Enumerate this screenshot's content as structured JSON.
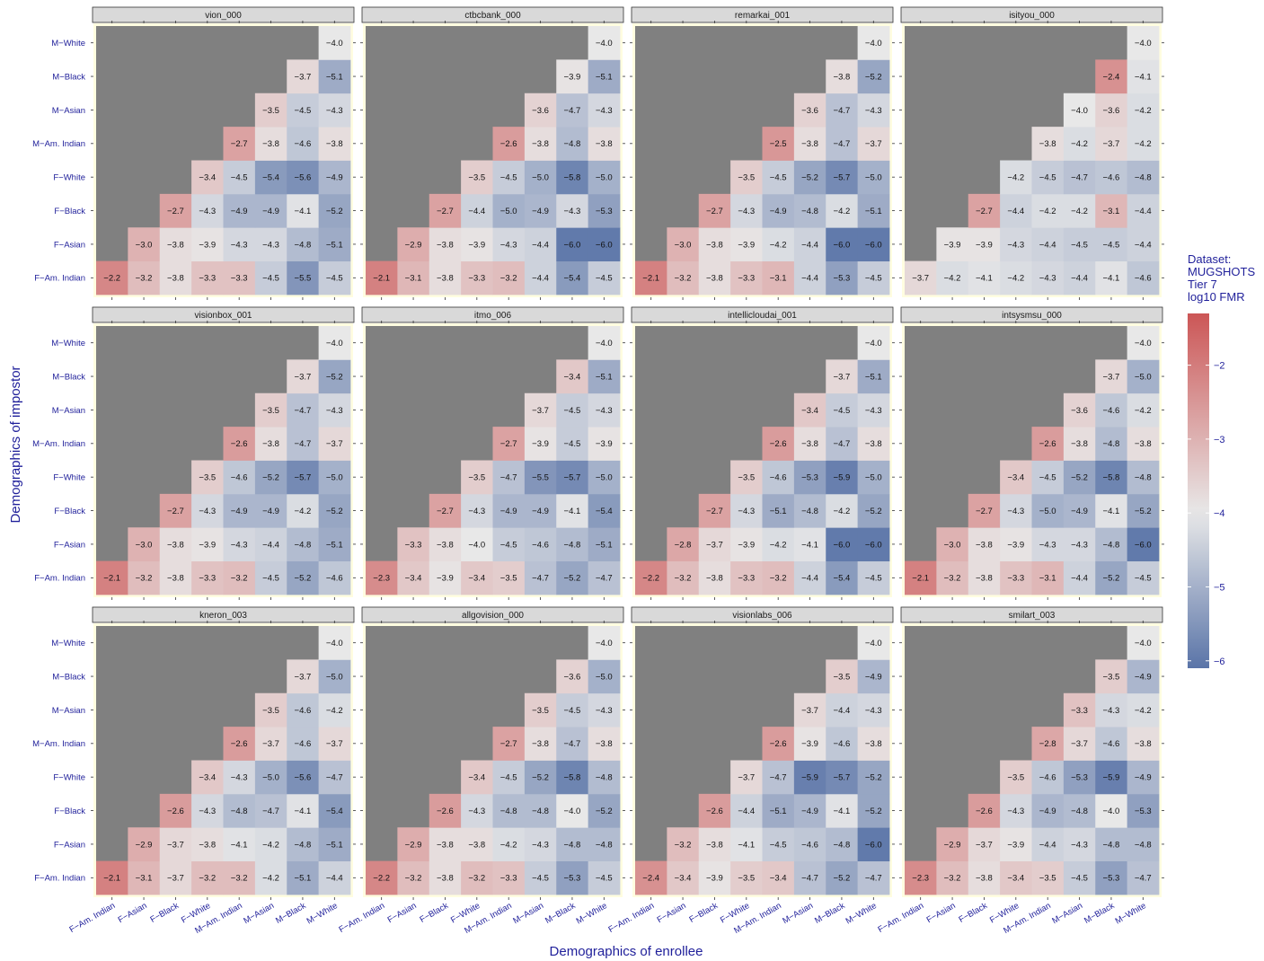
{
  "chart_data": {
    "type": "heatmap",
    "xlabel": "Demographics of enrollee",
    "ylabel": "Demographics of impostor",
    "x_categories": [
      "F−Am. Indian",
      "F−Asian",
      "F−Black",
      "F−White",
      "M−Am. Indian",
      "M−Asian",
      "M−Black",
      "M−White"
    ],
    "y_categories": [
      "F−Am. Indian",
      "F−Asian",
      "F−Black",
      "F−White",
      "M−Am. Indian",
      "M−Asian",
      "M−Black",
      "M−White"
    ],
    "legend": {
      "title_lines": [
        "Dataset:",
        "MUGSHOTS",
        "Tier 7",
        "log10 FMR"
      ],
      "ticks": [
        -2,
        -3,
        -4,
        -5,
        -6
      ],
      "range": [
        -6.1,
        -1.3
      ],
      "colors": {
        "high": "#cc5656",
        "mid": "#e8e8e8",
        "low": "#5a74a8",
        "masked": "#808080"
      }
    },
    "panels": [
      {
        "name": "vion_000",
        "rows": [
          [
            -2.2,
            -3.2,
            -3.8,
            -3.3,
            -3.3,
            -4.5,
            -5.5,
            -4.5
          ],
          [
            -3.0,
            -3.8,
            -3.9,
            -4.3,
            -4.3,
            -4.8,
            -5.1
          ],
          [
            -2.7,
            -4.3,
            -4.9,
            -4.9,
            -4.1,
            -5.2
          ],
          [
            -3.4,
            -4.5,
            -5.4,
            -5.6,
            -4.9
          ],
          [
            -2.7,
            -3.8,
            -4.6,
            -3.8
          ],
          [
            -3.5,
            -4.5,
            -4.3
          ],
          [
            -3.7,
            -5.1
          ],
          [
            -4.0
          ]
        ]
      },
      {
        "name": "ctbcbank_000",
        "rows": [
          [
            -2.1,
            -3.1,
            -3.8,
            -3.3,
            -3.2,
            -4.4,
            -5.4,
            -4.5
          ],
          [
            -2.9,
            -3.8,
            -3.9,
            -4.3,
            -4.4,
            -6.0,
            -6.0
          ],
          [
            -2.7,
            -4.4,
            -5.0,
            -4.9,
            -4.3,
            -5.3
          ],
          [
            -3.5,
            -4.5,
            -5.0,
            -5.8,
            -5.0
          ],
          [
            -2.6,
            -3.8,
            -4.8,
            -3.8
          ],
          [
            -3.6,
            -4.7,
            -4.3
          ],
          [
            -3.9,
            -5.1
          ],
          [
            -4.0
          ]
        ]
      },
      {
        "name": "remarkai_001",
        "rows": [
          [
            -2.1,
            -3.2,
            -3.8,
            -3.3,
            -3.1,
            -4.4,
            -5.3,
            -4.5
          ],
          [
            -3.0,
            -3.8,
            -3.9,
            -4.2,
            -4.4,
            -6.0,
            -6.0
          ],
          [
            -2.7,
            -4.3,
            -4.9,
            -4.8,
            -4.2,
            -5.1
          ],
          [
            -3.5,
            -4.5,
            -5.2,
            -5.7,
            -5.0
          ],
          [
            -2.5,
            -3.8,
            -4.7,
            -3.7
          ],
          [
            -3.6,
            -4.7,
            -4.3
          ],
          [
            -3.8,
            -5.2
          ],
          [
            -4.0
          ]
        ]
      },
      {
        "name": "isityou_000",
        "rows": [
          [
            -3.7,
            -4.2,
            -4.1,
            -4.2,
            -4.3,
            -4.4,
            -4.1,
            -4.6
          ],
          [
            -3.9,
            -3.9,
            -4.3,
            -4.4,
            -4.5,
            -4.5,
            -4.4
          ],
          [
            -2.7,
            -4.4,
            -4.2,
            -4.2,
            -3.1,
            -4.4
          ],
          [
            -4.2,
            -4.5,
            -4.7,
            -4.6,
            -4.8
          ],
          [
            -3.8,
            -4.2,
            -3.7,
            -4.2
          ],
          [
            -4.0,
            -3.6,
            -4.2
          ],
          [
            -2.4,
            -4.1
          ],
          [
            -4.0
          ]
        ]
      },
      {
        "name": "visionbox_001",
        "rows": [
          [
            -2.1,
            -3.2,
            -3.8,
            -3.3,
            -3.2,
            -4.5,
            -5.2,
            -4.6
          ],
          [
            -3.0,
            -3.8,
            -3.9,
            -4.3,
            -4.4,
            -4.8,
            -5.1
          ],
          [
            -2.7,
            -4.3,
            -4.9,
            -4.9,
            -4.2,
            -5.2
          ],
          [
            -3.5,
            -4.6,
            -5.2,
            -5.7,
            -5.0
          ],
          [
            -2.6,
            -3.8,
            -4.7,
            -3.7
          ],
          [
            -3.5,
            -4.7,
            -4.3
          ],
          [
            -3.7,
            -5.2
          ],
          [
            -4.0
          ]
        ]
      },
      {
        "name": "itmo_006",
        "rows": [
          [
            -2.3,
            -3.4,
            -3.9,
            -3.4,
            -3.5,
            -4.7,
            -5.2,
            -4.7
          ],
          [
            -3.3,
            -3.8,
            -4.0,
            -4.5,
            -4.6,
            -4.8,
            -5.1
          ],
          [
            -2.7,
            -4.3,
            -4.9,
            -4.9,
            -4.1,
            -5.4
          ],
          [
            -3.5,
            -4.7,
            -5.5,
            -5.7,
            -5.0
          ],
          [
            -2.7,
            -3.9,
            -4.5,
            -3.9
          ],
          [
            -3.7,
            -4.5,
            -4.3
          ],
          [
            -3.4,
            -5.1
          ],
          [
            -4.0
          ]
        ]
      },
      {
        "name": "intellicloudai_001",
        "rows": [
          [
            -2.2,
            -3.2,
            -3.8,
            -3.3,
            -3.2,
            -4.4,
            -5.4,
            -4.5
          ],
          [
            -2.8,
            -3.7,
            -3.9,
            -4.2,
            -4.1,
            -6.0,
            -6.0
          ],
          [
            -2.7,
            -4.3,
            -5.1,
            -4.8,
            -4.2,
            -5.2
          ],
          [
            -3.5,
            -4.6,
            -5.3,
            -5.9,
            -5.0
          ],
          [
            -2.6,
            -3.8,
            -4.7,
            -3.8
          ],
          [
            -3.4,
            -4.5,
            -4.3
          ],
          [
            -3.7,
            -5.1
          ],
          [
            -4.0
          ]
        ]
      },
      {
        "name": "intsysmsu_000",
        "rows": [
          [
            -2.1,
            -3.2,
            -3.8,
            -3.3,
            -3.1,
            -4.4,
            -5.2,
            -4.5
          ],
          [
            -3.0,
            -3.8,
            -3.9,
            -4.3,
            -4.3,
            -4.8,
            -6.0
          ],
          [
            -2.7,
            -4.3,
            -5.0,
            -4.9,
            -4.1,
            -5.2
          ],
          [
            -3.4,
            -4.5,
            -5.2,
            -5.8,
            -4.8
          ],
          [
            -2.6,
            -3.8,
            -4.8,
            -3.8
          ],
          [
            -3.6,
            -4.6,
            -4.2
          ],
          [
            -3.7,
            -5.0
          ],
          [
            -4.0
          ]
        ]
      },
      {
        "name": "kneron_003",
        "rows": [
          [
            -2.1,
            -3.1,
            -3.7,
            -3.2,
            -3.2,
            -4.2,
            -5.1,
            -4.4
          ],
          [
            -2.9,
            -3.7,
            -3.8,
            -4.1,
            -4.2,
            -4.8,
            -5.1
          ],
          [
            -2.6,
            -4.3,
            -4.8,
            -4.7,
            -4.1,
            -5.4
          ],
          [
            -3.4,
            -4.3,
            -5.0,
            -5.6,
            -4.7
          ],
          [
            -2.6,
            -3.7,
            -4.6,
            -3.7
          ],
          [
            -3.5,
            -4.6,
            -4.2
          ],
          [
            -3.7,
            -5.0
          ],
          [
            -4.0
          ]
        ]
      },
      {
        "name": "allgovision_000",
        "rows": [
          [
            -2.2,
            -3.2,
            -3.8,
            -3.2,
            -3.3,
            -4.5,
            -5.3,
            -4.5
          ],
          [
            -2.9,
            -3.8,
            -3.8,
            -4.2,
            -4.3,
            -4.8,
            -4.8
          ],
          [
            -2.6,
            -4.3,
            -4.8,
            -4.8,
            -4.0,
            -5.2
          ],
          [
            -3.4,
            -4.5,
            -5.2,
            -5.8,
            -4.8
          ],
          [
            -2.7,
            -3.8,
            -4.7,
            -3.8
          ],
          [
            -3.5,
            -4.5,
            -4.3
          ],
          [
            -3.6,
            -5.0
          ],
          [
            -4.0
          ]
        ]
      },
      {
        "name": "visionlabs_006",
        "rows": [
          [
            -2.4,
            -3.4,
            -3.9,
            -3.5,
            -3.4,
            -4.7,
            -5.2,
            -4.7
          ],
          [
            -3.2,
            -3.8,
            -4.1,
            -4.5,
            -4.6,
            -4.8,
            -6.0
          ],
          [
            -2.6,
            -4.4,
            -5.1,
            -4.9,
            -4.1,
            -5.2
          ],
          [
            -3.7,
            -4.7,
            -5.9,
            -5.7,
            -5.2
          ],
          [
            -2.6,
            -3.9,
            -4.6,
            -3.8
          ],
          [
            -3.7,
            -4.4,
            -4.3
          ],
          [
            -3.5,
            -4.9
          ],
          [
            -4.0
          ]
        ]
      },
      {
        "name": "smilart_003",
        "rows": [
          [
            -2.3,
            -3.2,
            -3.8,
            -3.4,
            -3.5,
            -4.5,
            -5.3,
            -4.7
          ],
          [
            -2.9,
            -3.7,
            -3.9,
            -4.4,
            -4.3,
            -4.8,
            -4.8
          ],
          [
            -2.6,
            -4.3,
            -4.9,
            -4.8,
            -4.0,
            -5.3
          ],
          [
            -3.5,
            -4.6,
            -5.3,
            -5.9,
            -4.9
          ],
          [
            -2.8,
            -3.7,
            -4.6,
            -3.8
          ],
          [
            -3.3,
            -4.3,
            -4.2
          ],
          [
            -3.5,
            -4.9
          ],
          [
            -4.0
          ]
        ]
      }
    ]
  }
}
